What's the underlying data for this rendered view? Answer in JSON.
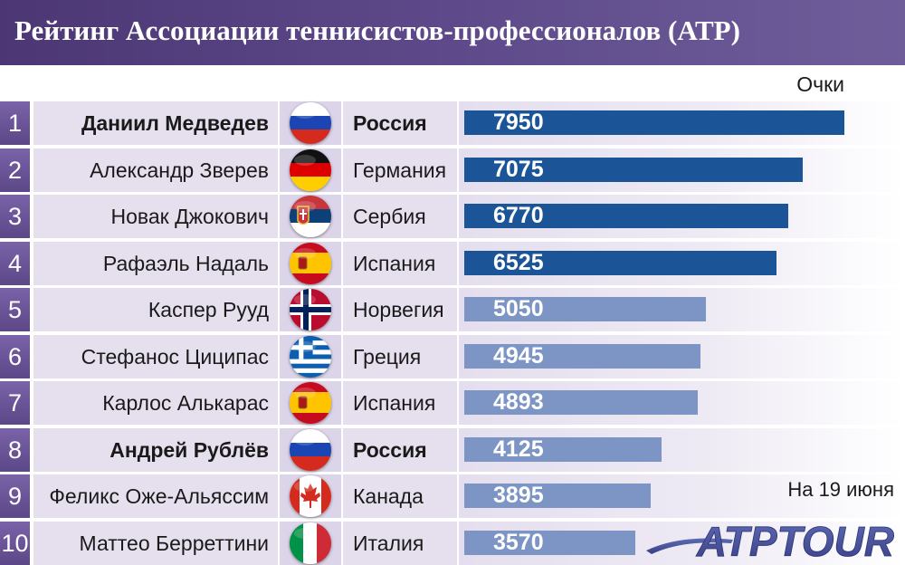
{
  "title": "Рейтинг Ассоциации теннисистов-профессионалов (АТР)",
  "points_label": "Очки",
  "date_note": "На 19 июня",
  "logo_text": "ATPTOUR",
  "colors": {
    "header": "#523d7c",
    "rank": "#6a53a0",
    "bar_dark": "#1b5597",
    "bar_light": "#7c95c4"
  },
  "chart_data": {
    "type": "bar",
    "orientation": "horizontal",
    "title": "Рейтинг Ассоциации теннисистов-профессионалов (АТР)",
    "ylabel": "Очки",
    "xlim": [
      0,
      8000
    ],
    "categories": [
      "Даниил Медведев",
      "Александр Зверев",
      "Новак Джокович",
      "Рафаэль Надаль",
      "Каспер Рууд",
      "Стефанос Циципас",
      "Карлос Алькарас",
      "Андрей Рублёв",
      "Феликс Оже-Альяссим",
      "Маттео Берреттини"
    ],
    "values": [
      7950,
      7075,
      6770,
      6525,
      5050,
      4945,
      4893,
      4125,
      3895,
      3570
    ],
    "rows": [
      {
        "rank": "1",
        "name": "Даниил Медведев",
        "country": "Россия",
        "flag": "russia-flag",
        "points": 7950,
        "bold": true
      },
      {
        "rank": "2",
        "name": "Александр Зверев",
        "country": "Германия",
        "flag": "germany-flag",
        "points": 7075,
        "bold": false
      },
      {
        "rank": "3",
        "name": "Новак Джокович",
        "country": "Сербия",
        "flag": "serbia-flag",
        "points": 6770,
        "bold": false
      },
      {
        "rank": "4",
        "name": "Рафаэль Надаль",
        "country": "Испания",
        "flag": "spain-flag",
        "points": 6525,
        "bold": false
      },
      {
        "rank": "5",
        "name": "Каспер Рууд",
        "country": "Норвегия",
        "flag": "norway-flag",
        "points": 5050,
        "bold": false
      },
      {
        "rank": "6",
        "name": "Стефанос Циципас",
        "country": "Греция",
        "flag": "greece-flag",
        "points": 4945,
        "bold": false
      },
      {
        "rank": "7",
        "name": "Карлос Алькарас",
        "country": "Испания",
        "flag": "spain-flag",
        "points": 4893,
        "bold": false
      },
      {
        "rank": "8",
        "name": "Андрей Рублёв",
        "country": "Россия",
        "flag": "russia-flag",
        "points": 4125,
        "bold": true
      },
      {
        "rank": "9",
        "name": "Феликс Оже-Альяссим",
        "country": "Канада",
        "flag": "canada-flag",
        "points": 3895,
        "bold": false
      },
      {
        "rank": "10",
        "name": "Маттео Берреттини",
        "country": "Италия",
        "flag": "italy-flag",
        "points": 3570,
        "bold": false
      }
    ]
  }
}
